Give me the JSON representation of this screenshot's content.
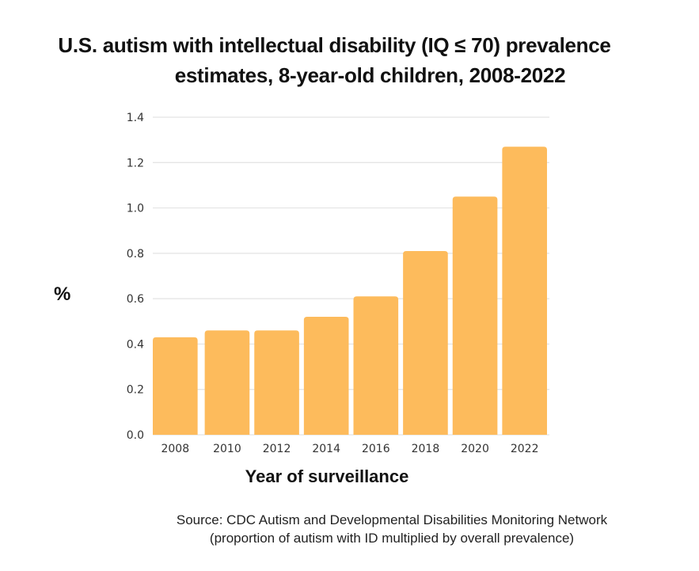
{
  "chart_data": {
    "type": "bar",
    "title": "U.S. autism with intellectual disability (IQ ≤ 70) prevalence estimates, 8-year-old children, 2008-2022",
    "title_lines": [
      "U.S. autism with intellectual disability (IQ ≤ 70) prevalence",
      "estimates, 8-year-old children, 2008-2022"
    ],
    "xlabel": "Year of surveillance",
    "ylabel": "%",
    "categories": [
      "2008",
      "2010",
      "2012",
      "2014",
      "2016",
      "2018",
      "2020",
      "2022"
    ],
    "values": [
      0.43,
      0.46,
      0.46,
      0.52,
      0.61,
      0.81,
      1.05,
      1.27
    ],
    "ylim": [
      0,
      1.4
    ],
    "yticks": [
      0.0,
      0.2,
      0.4,
      0.6,
      0.8,
      1.0,
      1.2,
      1.4
    ],
    "ytick_labels": [
      "0.0",
      "0.2",
      "0.4",
      "0.6",
      "0.8",
      "1.0",
      "1.2",
      "1.4"
    ],
    "grid": true,
    "legend": "none",
    "bar_color": "#FDBB5C",
    "grid_color": "#E3E3E3",
    "source_lines": [
      "Source: CDC Autism and Developmental Disabilities Monitoring Network",
      "(proportion of autism with ID multiplied by overall prevalence)"
    ]
  }
}
